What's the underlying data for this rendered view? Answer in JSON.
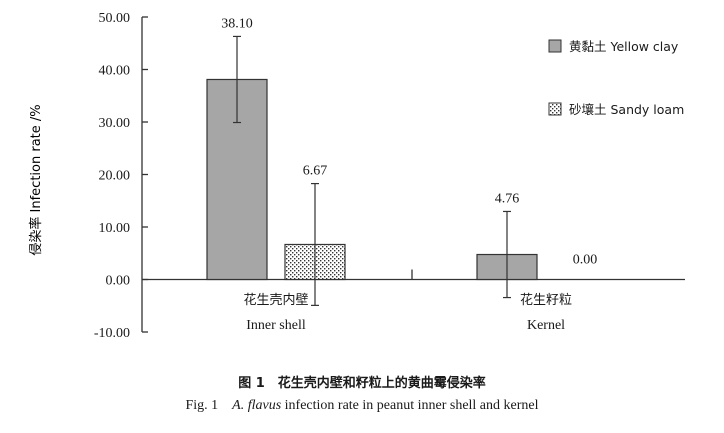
{
  "chart_data": {
    "type": "bar",
    "ylabel": "侵染率 Infection rate /%",
    "ylim": [
      -10,
      50
    ],
    "yticks": [
      "50.00",
      "40.00",
      "30.00",
      "20.00",
      "10.00",
      "0.00",
      "-10.00"
    ],
    "categories": [
      {
        "cn": "花生壳内壁",
        "en": "Inner shell"
      },
      {
        "cn": "花生籽粒",
        "en": "Kernel"
      }
    ],
    "series": [
      {
        "name": "黄黏土 Yellow clay",
        "values": [
          38.1,
          4.76
        ],
        "labels": [
          "38.10",
          "4.76"
        ],
        "errors": [
          8.2,
          8.2
        ],
        "color": "#a6a6a6",
        "pattern": "solid"
      },
      {
        "name": "砂壤土 Sandy loam",
        "values": [
          6.67,
          0.0
        ],
        "labels": [
          "6.67",
          "0.00"
        ],
        "errors": [
          11.6,
          null
        ],
        "color": "#ffffff",
        "pattern": "dotted"
      }
    ],
    "legend_position": "top-right",
    "grid": false
  },
  "caption": {
    "cn": "图 1　花生壳内壁和籽粒上的黄曲霉侵染率",
    "en_prefix": "Fig. 1　",
    "en_italic": "A. flavus",
    "en_suffix": " infection rate in peanut inner shell and kernel"
  }
}
